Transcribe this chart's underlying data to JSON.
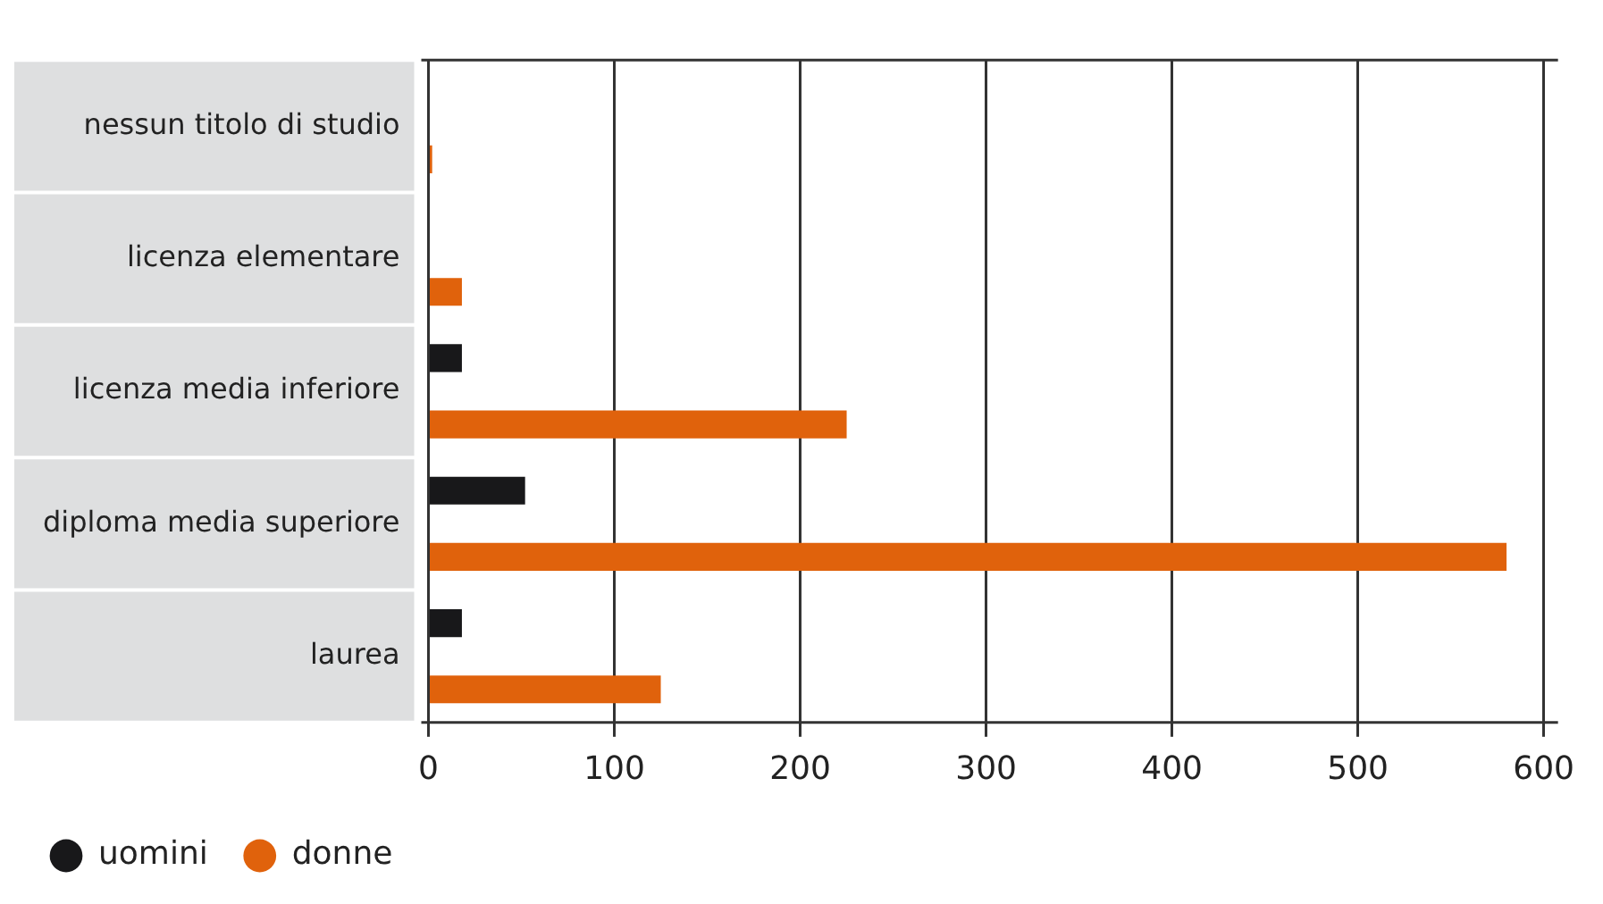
{
  "chart_data": {
    "type": "bar",
    "orientation": "horizontal",
    "categories": [
      "nessun titolo di studio",
      "licenza elementare",
      "licenza media inferiore",
      "diploma media superiore",
      "laurea"
    ],
    "series": [
      {
        "name": "uomini",
        "color": "#18181a",
        "values": [
          0,
          0,
          18,
          52,
          18
        ]
      },
      {
        "name": "donne",
        "color": "#e0620c",
        "values": [
          2,
          18,
          225,
          580,
          125
        ]
      }
    ],
    "xlim": [
      0,
      600
    ],
    "xticks": [
      0,
      100,
      200,
      300,
      400,
      500,
      600
    ],
    "grid": "x",
    "legend": "bottom left"
  }
}
